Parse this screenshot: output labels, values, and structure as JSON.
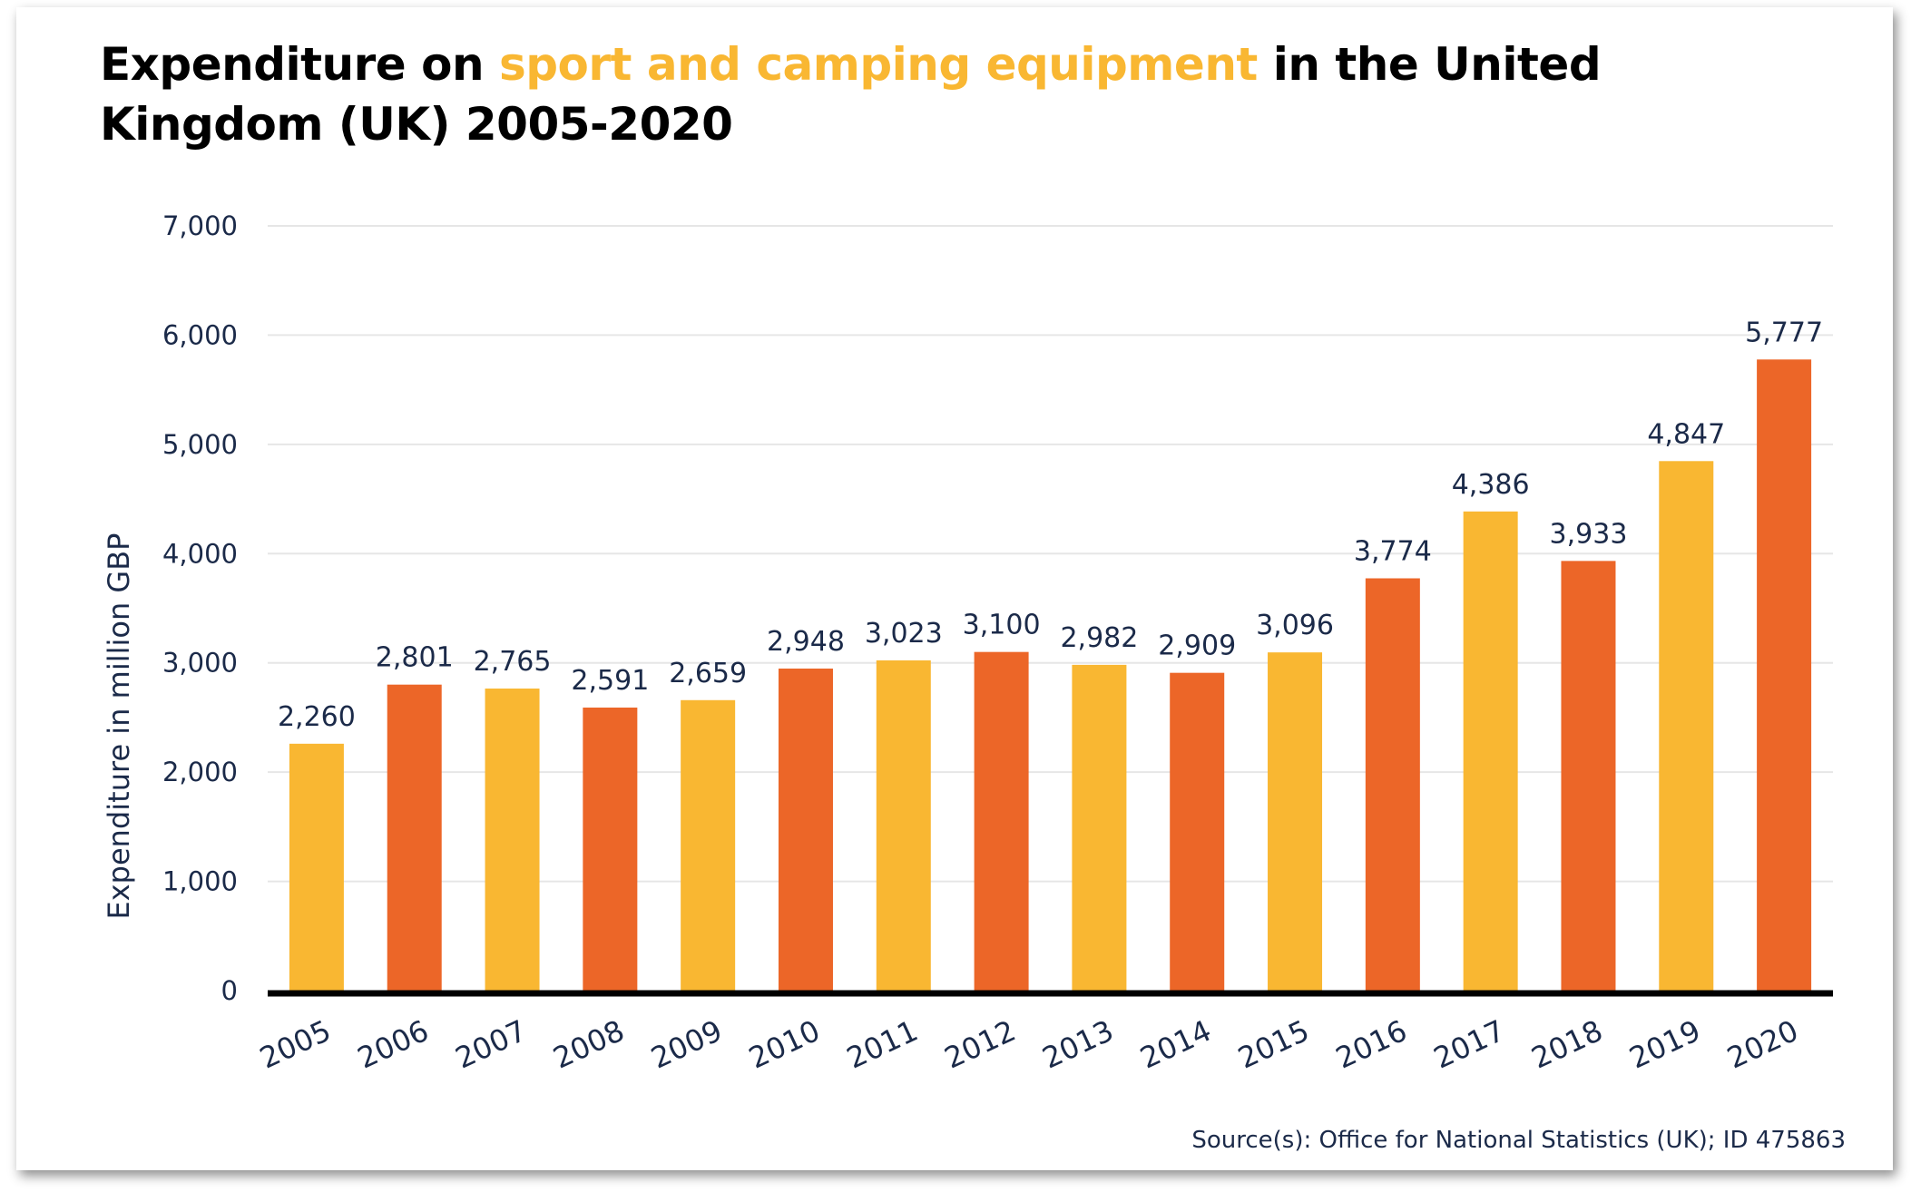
{
  "title": {
    "prefix": "Expenditure on ",
    "highlight": "sport and camping equipment",
    "suffix": " in the United Kingdom (UK) 2005-2020"
  },
  "source": "Source(s): Office for National Statistics (UK); ID 475863",
  "colors": {
    "yellow": "#f9b732",
    "orange": "#ec6628",
    "text": "#1b2a49",
    "grid": "#e6e6e6",
    "axis": "#000000"
  },
  "chart_data": {
    "type": "bar",
    "ylabel": "Expenditure in million GBP",
    "xlabel": "",
    "ylim": [
      0,
      7000
    ],
    "yticks": [
      0,
      1000,
      2000,
      3000,
      4000,
      5000,
      6000,
      7000
    ],
    "ytick_labels": [
      "0",
      "1,000",
      "2,000",
      "3,000",
      "4,000",
      "5,000",
      "6,000",
      "7,000"
    ],
    "grid": true,
    "categories": [
      "2005",
      "2006",
      "2007",
      "2008",
      "2009",
      "2010",
      "2011",
      "2012",
      "2013",
      "2014",
      "2015",
      "2016",
      "2017",
      "2018",
      "2019",
      "2020"
    ],
    "values": [
      2260,
      2801,
      2765,
      2591,
      2659,
      2948,
      3023,
      3100,
      2982,
      2909,
      3096,
      3774,
      4386,
      3933,
      4847,
      5777
    ],
    "value_labels": [
      "2,260",
      "2,801",
      "2,765",
      "2,591",
      "2,659",
      "2,948",
      "3,023",
      "3,100",
      "2,982",
      "2,909",
      "3,096",
      "3,774",
      "4,386",
      "3,933",
      "4,847",
      "5,777"
    ],
    "bar_colors": [
      "yellow",
      "orange",
      "yellow",
      "orange",
      "yellow",
      "orange",
      "yellow",
      "orange",
      "yellow",
      "orange",
      "yellow",
      "orange",
      "yellow",
      "orange",
      "yellow",
      "orange"
    ]
  }
}
